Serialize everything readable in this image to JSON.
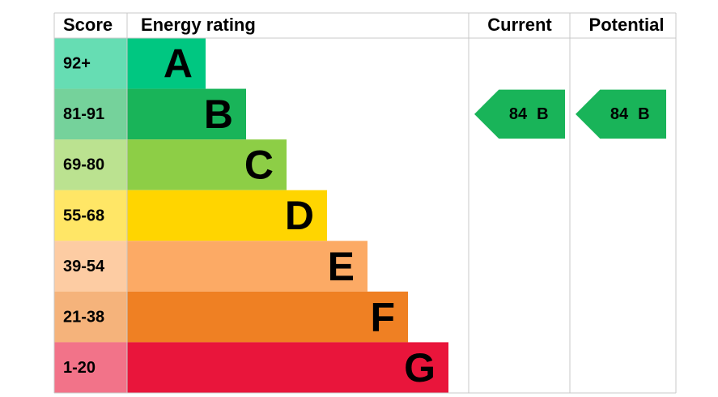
{
  "headers": {
    "score": "Score",
    "rating": "Energy rating",
    "current": "Current",
    "potential": "Potential"
  },
  "bands": [
    {
      "score": "92+",
      "letter": "A",
      "color": "#00c781"
    },
    {
      "score": "81-91",
      "letter": "B",
      "color": "#19b459"
    },
    {
      "score": "69-80",
      "letter": "C",
      "color": "#8dce46"
    },
    {
      "score": "55-68",
      "letter": "D",
      "color": "#ffd500"
    },
    {
      "score": "39-54",
      "letter": "E",
      "color": "#fcaa65"
    },
    {
      "score": "21-38",
      "letter": "F",
      "color": "#ef8023"
    },
    {
      "score": "1-20",
      "letter": "G",
      "color": "#e9153b"
    }
  ],
  "current": {
    "value": 84,
    "letter": "B"
  },
  "potential": {
    "value": 84,
    "letter": "B"
  }
}
